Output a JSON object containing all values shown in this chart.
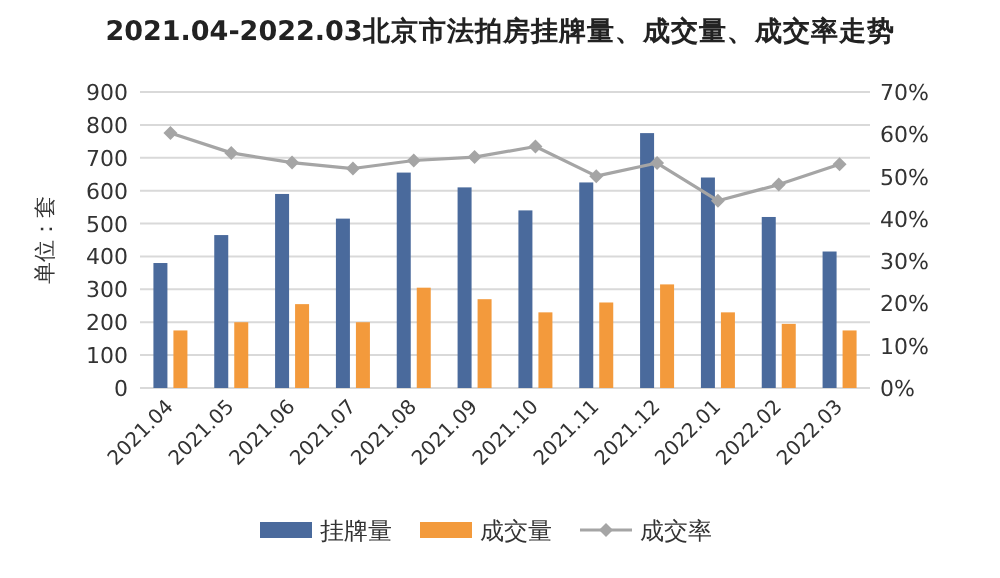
{
  "chart_data": {
    "type": "bar",
    "title": "2021.04-2022.03北京市法拍房挂牌量、成交量、成交率走势",
    "ylabel": "单位：套",
    "categories": [
      "2021.04",
      "2021.05",
      "2021.06",
      "2021.07",
      "2021.08",
      "2021.09",
      "2021.10",
      "2021.11",
      "2021.12",
      "2022.01",
      "2022.02",
      "2022.03"
    ],
    "series": [
      {
        "name": "挂牌量",
        "color": "#4a6a9c",
        "values": [
          380,
          465,
          590,
          515,
          655,
          610,
          540,
          625,
          775,
          640,
          520,
          415
        ]
      },
      {
        "name": "成交量",
        "color": "#f39a3c",
        "values": [
          175,
          200,
          255,
          200,
          305,
          270,
          230,
          260,
          315,
          230,
          195,
          175
        ]
      },
      {
        "name": "成交率",
        "type": "line",
        "axis": "y2",
        "color": "#a5a5a5",
        "marker": "diamond",
        "values": [
          60.3,
          55.6,
          53.3,
          51.9,
          53.8,
          54.6,
          57.1,
          50.1,
          53.2,
          44.3,
          48.1,
          52.9
        ]
      }
    ],
    "ylim": [
      0,
      900
    ],
    "yticks": [
      0,
      100,
      200,
      300,
      400,
      500,
      600,
      700,
      800,
      900
    ],
    "y2lim": [
      0,
      70
    ],
    "y2ticks": [
      {
        "value": 0,
        "label": "0%"
      },
      {
        "value": 10,
        "label": "10%"
      },
      {
        "value": 20,
        "label": "20%"
      },
      {
        "value": 30,
        "label": "30%"
      },
      {
        "value": 40,
        "label": "40%"
      },
      {
        "value": 50,
        "label": "50%"
      },
      {
        "value": 60,
        "label": "60%"
      },
      {
        "value": 70,
        "label": "70%"
      }
    ],
    "grid": "y",
    "legend": "bottom"
  }
}
